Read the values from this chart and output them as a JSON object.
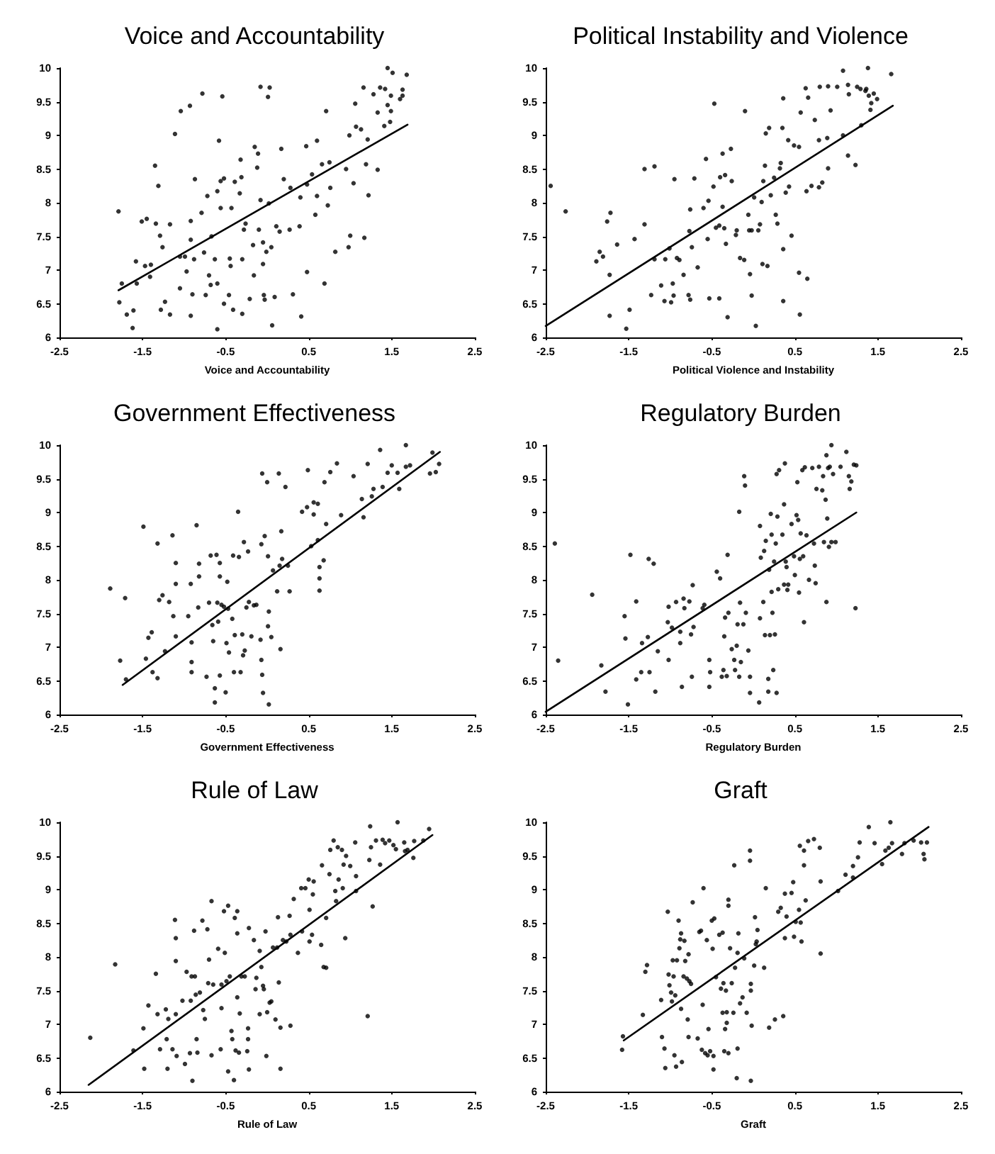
{
  "chart_data": [
    {
      "type": "scatter",
      "title": "Voice and Accountability",
      "xlabel": "Voice and Accountability",
      "xlim": [
        -2.5,
        2.5
      ],
      "xticks": [
        -2.5,
        -1.5,
        -0.5,
        0.5,
        1.5,
        2.5
      ],
      "ylim": [
        6,
        10
      ],
      "yticks": [
        6,
        6.5,
        7,
        7.5,
        8,
        8.5,
        9,
        9.5,
        10
      ],
      "grid": false,
      "marker": "circle",
      "series": [
        {
          "color": "#000000",
          "x": [
            -1.79,
            -1.78,
            -1.75,
            -1.69,
            -1.62,
            -1.61,
            -1.58,
            -1.57,
            -1.51,
            -1.45,
            -1.47,
            -1.4,
            -1.41,
            -1.35,
            -1.34,
            -1.31,
            -1.29,
            -1.26,
            -1.28,
            -1.23,
            -1.17,
            -1.17,
            -1.11,
            -1.05,
            -1.04,
            -1.05,
            -0.99,
            -0.97,
            -0.93,
            -0.92,
            -0.92,
            -0.92,
            -0.9,
            -0.88,
            -0.87,
            -0.78,
            -0.79,
            -0.76,
            -0.74,
            -0.72,
            -0.7,
            -0.68,
            -0.67,
            -0.63,
            -0.6,
            -0.6,
            -0.6,
            -0.58,
            -0.56,
            -0.56,
            -0.54,
            -0.52,
            -0.52,
            -0.46,
            -0.45,
            -0.44,
            -0.43,
            -0.41,
            -0.39,
            -0.33,
            -0.32,
            -0.31,
            -0.3,
            -0.3,
            -0.28,
            -0.26,
            -0.21,
            -0.17,
            -0.16,
            -0.15,
            -0.12,
            -0.11,
            -0.1,
            -0.08,
            -0.08,
            -0.05,
            -0.05,
            -0.04,
            -0.03,
            -0.01,
            0.01,
            0.02,
            0.03,
            0.05,
            0.06,
            0.09,
            0.11,
            0.15,
            0.17,
            0.2,
            0.27,
            0.28,
            0.31,
            0.39,
            0.4,
            0.41,
            0.47,
            0.48,
            0.48,
            0.54,
            0.58,
            0.6,
            0.6,
            0.66,
            0.69,
            0.71,
            0.73,
            0.75,
            0.76,
            0.82,
            0.95,
            0.98,
            0.99,
            1.0,
            1.04,
            1.06,
            1.07,
            1.13,
            1.16,
            1.17,
            1.19,
            1.21,
            1.22,
            1.28,
            1.33,
            1.33,
            1.36,
            1.41,
            1.42,
            1.45,
            1.45,
            1.48,
            1.49,
            1.49,
            1.51,
            1.6,
            1.63,
            1.63,
            1.68
          ],
          "values": [
            7.87,
            6.52,
            6.8,
            6.34,
            6.14,
            6.4,
            7.13,
            6.8,
            7.72,
            7.76,
            7.06,
            7.08,
            6.9,
            8.55,
            7.69,
            8.25,
            7.51,
            7.34,
            6.41,
            6.53,
            6.34,
            7.68,
            9.02,
            6.73,
            9.36,
            7.2,
            7.2,
            6.98,
            9.44,
            7.73,
            7.45,
            6.32,
            6.64,
            7.16,
            8.35,
            9.62,
            7.85,
            7.26,
            6.63,
            8.1,
            6.92,
            6.78,
            7.5,
            7.16,
            8.17,
            6.8,
            6.12,
            8.92,
            8.32,
            7.92,
            9.58,
            8.36,
            6.5,
            6.63,
            7.17,
            7.06,
            7.92,
            6.41,
            8.31,
            8.14,
            8.64,
            8.38,
            7.16,
            6.35,
            7.6,
            7.69,
            6.57,
            7.37,
            6.92,
            8.83,
            8.52,
            8.73,
            7.6,
            9.72,
            8.04,
            7.41,
            7.09,
            6.63,
            6.56,
            7.27,
            9.57,
            7.99,
            9.71,
            7.34,
            6.18,
            6.6,
            7.65,
            7.57,
            8.8,
            8.35,
            7.6,
            8.22,
            6.64,
            7.65,
            8.08,
            6.31,
            8.84,
            6.97,
            8.27,
            8.42,
            7.82,
            8.1,
            8.92,
            8.57,
            6.8,
            9.36,
            7.96,
            8.6,
            8.22,
            7.27,
            8.5,
            7.34,
            9.0,
            7.51,
            8.29,
            9.47,
            9.13,
            9.09,
            9.71,
            7.48,
            8.57,
            8.94,
            8.11,
            9.61,
            9.34,
            8.49,
            9.71,
            9.14,
            9.69,
            10.0,
            9.45,
            9.2,
            9.59,
            9.36,
            9.93,
            9.54,
            9.68,
            9.59,
            9.9
          ]
        },
        {
          "type": "line",
          "color": "#000000",
          "marker": "none",
          "x": [
            -1.79,
            1.69
          ],
          "values": [
            6.7,
            9.16
          ]
        }
      ]
    },
    {
      "type": "scatter",
      "title": "Political Instability and Violence",
      "xlabel": "Political Violence and Instability",
      "xlim": [
        -2.5,
        2.5
      ],
      "xticks": [
        -2.5,
        -1.5,
        -0.5,
        0.5,
        1.5,
        2.5
      ],
      "ylim": [
        6,
        10
      ],
      "yticks": [
        6,
        6.5,
        7,
        7.5,
        8,
        8.5,
        9,
        9.5,
        10
      ],
      "grid": false,
      "marker": "circle",
      "series": [
        {
          "color": "#000000",
          "x": [
            -2.44,
            -2.26,
            -1.89,
            -1.85,
            -1.81,
            -1.76,
            -1.72,
            -1.73,
            -1.73,
            -1.64,
            -1.49,
            -1.53,
            -1.43,
            -1.31,
            -1.31,
            -1.19,
            -1.23,
            -1.19,
            -1.11,
            -1.06,
            -1.07,
            -1.01,
            -0.99,
            -0.97,
            -0.96,
            -0.95,
            -0.92,
            -0.89,
            -0.84,
            -0.78,
            -0.77,
            -0.76,
            -0.76,
            -0.74,
            -0.71,
            -0.67,
            -0.6,
            -0.57,
            -0.55,
            -0.54,
            -0.53,
            -0.48,
            -0.47,
            -0.45,
            -0.41,
            -0.41,
            -0.4,
            -0.37,
            -0.37,
            -0.35,
            -0.34,
            -0.33,
            -0.31,
            -0.27,
            -0.26,
            -0.21,
            -0.2,
            -0.16,
            -0.11,
            -0.1,
            -0.06,
            -0.05,
            -0.04,
            -0.02,
            -0.02,
            0.01,
            0.03,
            0.06,
            0.08,
            0.1,
            0.11,
            0.12,
            0.14,
            0.15,
            0.17,
            0.19,
            0.21,
            0.25,
            0.27,
            0.29,
            0.32,
            0.33,
            0.35,
            0.36,
            0.36,
            0.36,
            0.39,
            0.42,
            0.43,
            0.46,
            0.49,
            0.55,
            0.56,
            0.55,
            0.57,
            0.63,
            0.64,
            0.65,
            0.66,
            0.7,
            0.74,
            0.79,
            0.79,
            0.8,
            0.83,
            0.89,
            0.9,
            0.9,
            0.93,
            1.01,
            1.08,
            1.08,
            1.14,
            1.14,
            1.15,
            1.23,
            1.25,
            1.29,
            1.3,
            1.35,
            1.38,
            1.36,
            1.39,
            1.41,
            1.42,
            1.45,
            1.49,
            1.66
          ],
          "values": [
            8.25,
            7.87,
            7.13,
            7.27,
            7.2,
            7.72,
            7.85,
            6.93,
            6.32,
            7.38,
            6.41,
            6.13,
            7.46,
            7.68,
            8.5,
            8.54,
            6.63,
            7.16,
            6.77,
            7.16,
            6.54,
            7.32,
            6.52,
            6.8,
            6.62,
            8.35,
            7.18,
            7.15,
            6.93,
            6.63,
            7.58,
            7.9,
            6.56,
            7.34,
            8.36,
            7.04,
            7.92,
            8.65,
            7.46,
            8.03,
            6.58,
            8.24,
            9.47,
            7.63,
            6.58,
            7.66,
            8.38,
            8.73,
            7.94,
            7.62,
            8.41,
            7.39,
            6.3,
            8.8,
            8.32,
            7.52,
            7.59,
            7.18,
            7.15,
            9.36,
            7.82,
            7.59,
            6.94,
            7.59,
            6.62,
            8.08,
            6.17,
            7.59,
            7.68,
            8.01,
            7.09,
            8.32,
            8.55,
            9.03,
            7.06,
            9.11,
            8.11,
            8.37,
            7.82,
            7.69,
            8.51,
            8.59,
            9.11,
            7.31,
            9.55,
            6.54,
            8.15,
            8.93,
            8.24,
            7.51,
            8.85,
            8.83,
            6.34,
            6.96,
            9.34,
            9.7,
            8.17,
            6.87,
            9.56,
            8.25,
            9.23,
            8.93,
            8.23,
            9.72,
            8.3,
            8.96,
            9.73,
            8.51,
            9.37,
            9.72,
            9.96,
            9.0,
            8.7,
            9.75,
            9.61,
            8.56,
            9.72,
            9.69,
            9.15,
            9.66,
            10.0,
            9.69,
            9.59,
            9.38,
            9.48,
            9.62,
            9.54,
            9.91
          ]
        },
        {
          "type": "line",
          "color": "#000000",
          "marker": "none",
          "x": [
            -2.5,
            1.68
          ],
          "values": [
            6.17,
            9.44
          ]
        }
      ]
    },
    {
      "type": "scatter",
      "title": "Government Effectiveness",
      "xlabel": "Government Effectiveness",
      "xlim": [
        -2.5,
        2.5
      ],
      "xticks": [
        -2.5,
        -1.5,
        -0.5,
        0.5,
        1.5,
        2.5
      ],
      "ylim": [
        6,
        10
      ],
      "yticks": [
        6,
        6.5,
        7,
        7.5,
        8,
        8.5,
        9,
        9.5,
        10
      ],
      "grid": false,
      "marker": "circle",
      "series": [
        {
          "color": "#000000",
          "x": [
            -1.89,
            -1.77,
            -1.71,
            -1.7,
            -1.49,
            -1.46,
            -1.43,
            -1.39,
            -1.38,
            -1.32,
            -1.32,
            -1.3,
            -1.26,
            -1.23,
            -1.18,
            -1.14,
            -1.13,
            -1.1,
            -1.1,
            -1.1,
            -0.95,
            -0.92,
            -0.91,
            -0.91,
            -0.85,
            -0.83,
            -0.82,
            -0.82,
            -0.91,
            -0.73,
            -0.7,
            -0.68,
            -0.66,
            -0.65,
            -0.63,
            -0.63,
            -0.61,
            -0.6,
            -0.59,
            -0.57,
            -0.57,
            -0.57,
            -0.55,
            -0.52,
            -0.5,
            -0.49,
            -0.48,
            -0.47,
            -0.46,
            -0.42,
            -0.41,
            -0.39,
            -0.4,
            -0.35,
            -0.34,
            -0.32,
            -0.3,
            -0.29,
            -0.28,
            -0.27,
            -0.25,
            -0.23,
            -0.22,
            -0.19,
            -0.16,
            -0.13,
            -0.08,
            -0.07,
            -0.07,
            -0.06,
            -0.06,
            -0.05,
            -0.03,
            0.0,
            0.01,
            0.01,
            0.02,
            0.02,
            0.05,
            0.07,
            0.12,
            0.14,
            0.15,
            0.16,
            0.17,
            0.18,
            0.22,
            0.25,
            0.27,
            0.42,
            0.48,
            0.49,
            0.53,
            0.56,
            0.56,
            0.61,
            0.61,
            0.63,
            0.63,
            0.63,
            0.68,
            0.69,
            0.71,
            0.76,
            0.84,
            0.89,
            1.04,
            1.14,
            1.16,
            1.21,
            1.26,
            1.28,
            1.36,
            1.39,
            1.45,
            1.5,
            1.57,
            1.59,
            1.67,
            1.67,
            1.72,
            1.96,
            1.99,
            2.03,
            2.07
          ],
          "values": [
            7.87,
            6.8,
            7.73,
            6.52,
            8.79,
            6.83,
            7.14,
            7.22,
            6.63,
            8.54,
            6.54,
            7.7,
            7.77,
            6.94,
            7.67,
            8.66,
            7.46,
            8.25,
            7.94,
            7.16,
            7.46,
            7.94,
            6.63,
            6.78,
            8.81,
            7.59,
            8.05,
            8.24,
            7.07,
            6.56,
            7.66,
            8.36,
            7.33,
            7.09,
            6.39,
            6.18,
            8.37,
            7.66,
            7.38,
            8.25,
            6.58,
            8.05,
            7.63,
            7.6,
            6.33,
            7.06,
            7.97,
            7.57,
            6.92,
            7.42,
            8.36,
            7.18,
            6.63,
            9.01,
            8.34,
            6.63,
            7.19,
            6.88,
            8.56,
            6.95,
            7.59,
            8.42,
            7.67,
            7.16,
            7.62,
            7.63,
            7.11,
            6.81,
            8.53,
            6.59,
            9.58,
            6.32,
            8.65,
            9.45,
            8.35,
            7.31,
            7.53,
            6.15,
            7.15,
            8.14,
            7.83,
            9.58,
            8.21,
            6.97,
            8.72,
            8.31,
            9.38,
            8.21,
            7.83,
            9.01,
            9.08,
            9.63,
            8.5,
            9.15,
            8.97,
            9.13,
            8.59,
            8.19,
            8.02,
            7.84,
            8.29,
            9.45,
            8.83,
            9.6,
            9.73,
            8.96,
            9.54,
            9.2,
            8.93,
            9.72,
            9.24,
            9.35,
            9.93,
            9.38,
            9.59,
            9.7,
            9.59,
            9.35,
            10.0,
            9.68,
            9.7,
            9.58,
            9.89,
            9.6,
            9.72
          ]
        },
        {
          "type": "line",
          "color": "#000000",
          "marker": "none",
          "x": [
            -1.74,
            2.08
          ],
          "values": [
            6.44,
            9.9
          ]
        }
      ]
    },
    {
      "type": "scatter",
      "title": "Regulatory Burden",
      "xlabel": "Regulatory Burden",
      "xlim": [
        -2.5,
        2.5
      ],
      "xticks": [
        -2.5,
        -1.5,
        -0.5,
        0.5,
        1.5,
        2.5
      ],
      "ylim": [
        6,
        10
      ],
      "yticks": [
        6,
        6.5,
        7,
        7.5,
        8,
        8.5,
        9,
        9.5,
        10
      ],
      "grid": false,
      "marker": "circle",
      "series": [
        {
          "color": "#000000",
          "x": [
            -2.39,
            -2.35,
            -1.94,
            -1.83,
            -1.78,
            -1.55,
            -1.54,
            -1.51,
            -1.48,
            -1.41,
            -1.41,
            -1.35,
            -1.34,
            -1.27,
            -1.26,
            -1.25,
            -1.2,
            -1.18,
            -1.15,
            -1.03,
            -1.02,
            -1.02,
            -0.98,
            -0.93,
            -0.88,
            -0.88,
            -0.86,
            -0.84,
            -0.83,
            -0.77,
            -0.75,
            -0.74,
            -0.73,
            -0.72,
            -0.61,
            -0.59,
            -0.53,
            -0.53,
            -0.52,
            -0.44,
            -0.4,
            -0.38,
            -0.36,
            -0.35,
            -0.34,
            -0.31,
            -0.32,
            -0.3,
            -0.26,
            -0.23,
            -0.22,
            -0.2,
            -0.19,
            -0.17,
            -0.17,
            -0.16,
            -0.15,
            -0.12,
            -0.11,
            -0.1,
            -0.09,
            -0.06,
            -0.04,
            -0.04,
            0.07,
            0.08,
            0.08,
            0.09,
            0.12,
            0.13,
            0.14,
            0.15,
            0.18,
            0.18,
            0.19,
            0.2,
            0.21,
            0.22,
            0.22,
            0.23,
            0.24,
            0.25,
            0.26,
            0.27,
            0.28,
            0.28,
            0.29,
            0.3,
            0.31,
            0.35,
            0.37,
            0.37,
            0.38,
            0.39,
            0.4,
            0.41,
            0.42,
            0.46,
            0.49,
            0.5,
            0.52,
            0.53,
            0.54,
            0.55,
            0.56,
            0.57,
            0.59,
            0.6,
            0.61,
            0.62,
            0.64,
            0.67,
            0.71,
            0.73,
            0.74,
            0.75,
            0.76,
            0.79,
            0.83,
            0.84,
            0.85,
            0.87,
            0.88,
            0.88,
            0.89,
            0.9,
            0.91,
            0.92,
            0.94,
            0.94,
            0.96,
            0.99,
            1.05,
            1.12,
            1.15,
            1.16,
            1.18,
            1.21,
            1.23,
            1.24
          ],
          "values": [
            8.54,
            6.8,
            7.78,
            6.73,
            6.34,
            7.46,
            7.13,
            6.15,
            8.37,
            7.68,
            6.52,
            6.63,
            7.06,
            7.15,
            8.31,
            6.63,
            8.24,
            6.34,
            6.94,
            7.37,
            6.81,
            7.6,
            7.29,
            7.67,
            7.23,
            7.06,
            6.41,
            7.72,
            7.58,
            7.68,
            7.19,
            6.56,
            7.92,
            7.3,
            7.58,
            7.63,
            6.81,
            6.41,
            6.63,
            8.12,
            8.02,
            6.56,
            6.66,
            7.16,
            7.44,
            8.37,
            6.57,
            7.51,
            6.97,
            6.81,
            6.66,
            7.02,
            7.34,
            9.01,
            6.56,
            7.66,
            6.78,
            7.34,
            9.54,
            9.4,
            7.51,
            6.95,
            6.56,
            6.32,
            6.18,
            8.8,
            7.43,
            8.33,
            7.67,
            8.43,
            7.18,
            8.58,
            6.53,
            6.34,
            8.15,
            7.18,
            8.98,
            8.67,
            7.82,
            7.51,
            6.66,
            8.27,
            7.19,
            8.54,
            9.57,
            6.32,
            8.94,
            7.86,
            9.63,
            8.67,
            9.12,
            7.93,
            9.73,
            8.27,
            8.19,
            7.85,
            7.93,
            8.83,
            8.35,
            8.07,
            8.96,
            9.45,
            8.89,
            7.81,
            8.31,
            8.69,
            9.63,
            8.35,
            7.37,
            9.67,
            8.66,
            8.0,
            9.66,
            8.54,
            8.21,
            7.95,
            9.35,
            9.68,
            9.33,
            9.54,
            8.56,
            9.19,
            7.67,
            9.85,
            8.91,
            9.66,
            8.49,
            9.68,
            10.0,
            8.56,
            9.57,
            8.56,
            9.68,
            9.9,
            9.54,
            9.35,
            9.46,
            9.71,
            7.58,
            9.7
          ]
        },
        {
          "type": "line",
          "color": "#000000",
          "marker": "none",
          "x": [
            -2.5,
            1.24
          ],
          "values": [
            6.04,
            9.0
          ]
        }
      ]
    },
    {
      "type": "scatter",
      "title": "Rule of Law",
      "xlabel": "Rule of Law",
      "xlim": [
        -2.5,
        2.5
      ],
      "xticks": [
        -2.5,
        -1.5,
        -0.5,
        0.5,
        1.5,
        2.5
      ],
      "ylim": [
        6,
        10
      ],
      "yticks": [
        6,
        6.5,
        7,
        7.5,
        8,
        8.5,
        9,
        9.5,
        10
      ],
      "grid": false,
      "marker": "circle",
      "series": [
        {
          "color": "#000000",
          "x": [
            -2.13,
            -1.83,
            -1.61,
            -1.49,
            -1.48,
            -1.43,
            -1.34,
            -1.32,
            -1.29,
            -1.22,
            -1.21,
            -1.2,
            -1.19,
            -1.14,
            -1.11,
            -1.1,
            -1.1,
            -1.1,
            -1.09,
            -1.02,
            -0.99,
            -0.97,
            -0.93,
            -0.92,
            -0.91,
            -0.9,
            -0.88,
            -0.87,
            -0.86,
            -0.85,
            -0.84,
            -0.81,
            -0.78,
            -0.77,
            -0.75,
            -0.72,
            -0.71,
            -0.7,
            -0.67,
            -0.67,
            -0.65,
            -0.59,
            -0.56,
            -0.55,
            -0.55,
            -0.52,
            -0.51,
            -0.49,
            -0.47,
            -0.47,
            -0.45,
            -0.43,
            -0.42,
            -0.4,
            -0.39,
            -0.38,
            -0.36,
            -0.36,
            -0.36,
            -0.34,
            -0.33,
            -0.31,
            -0.27,
            -0.24,
            -0.23,
            -0.23,
            -0.22,
            -0.22,
            -0.16,
            -0.14,
            -0.13,
            -0.09,
            -0.09,
            -0.07,
            -0.05,
            -0.04,
            -0.02,
            -0.01,
            0.0,
            0.03,
            0.05,
            0.07,
            0.1,
            0.12,
            0.13,
            0.14,
            0.16,
            0.16,
            0.19,
            0.23,
            0.27,
            0.28,
            0.28,
            0.32,
            0.37,
            0.41,
            0.42,
            0.46,
            0.5,
            0.51,
            0.51,
            0.54,
            0.55,
            0.56,
            0.65,
            0.66,
            0.68,
            0.71,
            0.71,
            0.75,
            0.76,
            0.8,
            0.82,
            0.83,
            0.85,
            0.86,
            0.9,
            0.91,
            0.92,
            0.94,
            0.95,
            1.0,
            1.06,
            1.07,
            1.07,
            1.21,
            1.23,
            1.24,
            1.25,
            1.27,
            1.31,
            1.36,
            1.39,
            1.42,
            1.47,
            1.52,
            1.57,
            1.55,
            1.65,
            1.66,
            1.69,
            1.76,
            1.77,
            1.88,
            1.95
          ],
          "values": [
            6.8,
            7.89,
            6.61,
            6.94,
            6.34,
            7.28,
            7.75,
            7.15,
            6.63,
            7.22,
            6.78,
            6.34,
            7.08,
            6.63,
            8.55,
            8.28,
            7.94,
            7.15,
            6.53,
            7.35,
            6.41,
            7.78,
            6.57,
            7.35,
            7.71,
            6.16,
            8.39,
            7.71,
            7.44,
            6.78,
            6.58,
            7.47,
            8.54,
            7.21,
            7.08,
            8.41,
            7.61,
            7.96,
            8.83,
            6.54,
            7.59,
            8.12,
            6.63,
            7.24,
            7.59,
            8.68,
            8.06,
            7.64,
            8.76,
            6.3,
            7.71,
            6.9,
            6.78,
            6.17,
            8.58,
            6.61,
            8.35,
            7.4,
            8.68,
            6.58,
            7.16,
            7.71,
            7.71,
            6.6,
            6.94,
            6.78,
            6.33,
            8.43,
            8.25,
            7.52,
            7.69,
            7.15,
            8.09,
            7.85,
            7.57,
            7.52,
            8.38,
            6.53,
            7.18,
            7.32,
            7.34,
            8.14,
            7.07,
            8.14,
            8.59,
            7.62,
            6.95,
            6.34,
            8.25,
            8.23,
            8.61,
            6.98,
            8.33,
            8.86,
            8.06,
            9.02,
            8.38,
            9.02,
            9.15,
            8.7,
            8.23,
            8.33,
            8.93,
            9.12,
            8.18,
            9.36,
            7.85,
            7.84,
            8.58,
            9.23,
            9.59,
            9.73,
            8.98,
            8.83,
            9.63,
            9.15,
            9.59,
            9.02,
            9.37,
            8.28,
            9.5,
            9.35,
            9.7,
            8.98,
            9.2,
            7.12,
            9.44,
            9.94,
            9.63,
            8.75,
            9.73,
            9.37,
            9.74,
            9.69,
            9.73,
            9.66,
            10.0,
            9.6,
            9.7,
            9.57,
            9.59,
            9.47,
            9.72,
            9.73,
            9.9
          ]
        },
        {
          "type": "line",
          "color": "#000000",
          "marker": "none",
          "x": [
            -2.15,
            1.99
          ],
          "values": [
            6.1,
            9.81
          ]
        }
      ]
    },
    {
      "type": "scatter",
      "title": "Graft",
      "xlabel": "Graft",
      "xlim": [
        -2.5,
        2.5
      ],
      "xticks": [
        -2.5,
        -1.5,
        -0.5,
        0.5,
        1.5,
        2.5
      ],
      "ylim": [
        6,
        10
      ],
      "yticks": [
        6,
        6.5,
        7,
        7.5,
        8,
        8.5,
        9,
        9.5,
        10
      ],
      "grid": false,
      "marker": "circle",
      "series": [
        {
          "color": "#000000",
          "x": [
            -1.58,
            -1.57,
            -1.33,
            -1.3,
            -1.28,
            -1.11,
            -1.1,
            -1.07,
            -1.06,
            -1.03,
            -1.02,
            -1.01,
            -0.99,
            -0.98,
            -0.97,
            -0.96,
            -0.95,
            -0.94,
            -0.93,
            -0.92,
            -0.9,
            -0.89,
            -0.88,
            -0.87,
            -0.87,
            -0.86,
            -0.84,
            -0.83,
            -0.82,
            -0.8,
            -0.79,
            -0.78,
            -0.78,
            -0.77,
            -0.75,
            -0.73,
            -0.67,
            -0.65,
            -0.63,
            -0.62,
            -0.61,
            -0.6,
            -0.58,
            -0.56,
            -0.55,
            -0.54,
            -0.52,
            -0.5,
            -0.49,
            -0.48,
            -0.48,
            -0.47,
            -0.45,
            -0.41,
            -0.39,
            -0.37,
            -0.37,
            -0.36,
            -0.35,
            -0.34,
            -0.33,
            -0.32,
            -0.32,
            -0.3,
            -0.3,
            -0.3,
            -0.28,
            -0.26,
            -0.24,
            -0.23,
            -0.22,
            -0.2,
            -0.19,
            -0.19,
            -0.18,
            -0.16,
            -0.13,
            -0.11,
            -0.08,
            -0.04,
            -0.04,
            -0.03,
            -0.03,
            -0.03,
            -0.02,
            0.01,
            0.02,
            0.03,
            0.04,
            0.05,
            0.13,
            0.15,
            0.19,
            0.26,
            0.3,
            0.33,
            0.36,
            0.38,
            0.38,
            0.4,
            0.46,
            0.48,
            0.49,
            0.51,
            0.55,
            0.56,
            0.57,
            0.58,
            0.61,
            0.61,
            0.63,
            0.66,
            0.73,
            0.8,
            0.81,
            0.81,
            1.02,
            1.11,
            1.2,
            1.2,
            1.26,
            1.28,
            1.39,
            1.46,
            1.55,
            1.59,
            1.63,
            1.65,
            1.67,
            1.79,
            1.82,
            1.93,
            2.02,
            2.05,
            2.06,
            2.09
          ],
          "values": [
            6.62,
            6.82,
            7.14,
            7.78,
            7.88,
            7.36,
            6.81,
            6.64,
            6.35,
            8.67,
            7.74,
            7.58,
            7.47,
            7.34,
            7.95,
            7.71,
            6.54,
            7.43,
            6.37,
            7.95,
            8.54,
            8.13,
            8.26,
            7.23,
            8.35,
            6.44,
            7.71,
            8.24,
            7.94,
            7.68,
            7.07,
            6.81,
            8.04,
            7.64,
            7.6,
            8.81,
            6.79,
            8.37,
            8.39,
            6.62,
            7.29,
            9.02,
            6.57,
            8.25,
            6.54,
            6.93,
            6.6,
            8.54,
            8.12,
            6.33,
            6.53,
            8.57,
            7.7,
            8.33,
            7.53,
            8.36,
            7.17,
            7.61,
            6.6,
            6.93,
            7.5,
            7.18,
            7.02,
            8.85,
            8.76,
            6.57,
            8.13,
            7.61,
            7.17,
            9.36,
            7.84,
            6.2,
            8.06,
            6.64,
            8.35,
            7.31,
            7.4,
            7.98,
            7.17,
            9.58,
            9.43,
            7.5,
            7.6,
            6.16,
            6.98,
            7.87,
            8.59,
            8.19,
            8.23,
            8.4,
            7.84,
            9.02,
            6.95,
            7.07,
            8.67,
            8.73,
            7.12,
            8.94,
            8.28,
            8.6,
            8.95,
            9.11,
            8.3,
            8.52,
            8.7,
            9.65,
            8.51,
            8.23,
            9.58,
            9.36,
            8.84,
            9.72,
            9.75,
            9.62,
            9.12,
            8.05,
            8.98,
            9.22,
            9.35,
            9.18,
            9.48,
            9.7,
            9.93,
            9.69,
            9.38,
            9.58,
            9.62,
            10.0,
            9.69,
            9.53,
            9.69,
            9.73,
            9.7,
            9.53,
            9.45,
            9.7
          ]
        },
        {
          "type": "line",
          "color": "#000000",
          "marker": "none",
          "x": [
            -1.56,
            2.11
          ],
          "values": [
            6.76,
            9.93
          ]
        }
      ]
    }
  ]
}
